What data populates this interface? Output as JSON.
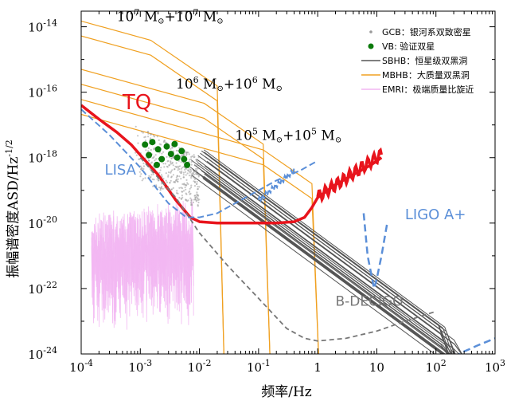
{
  "chart_data": {
    "type": "line",
    "xlabel": "频率/Hz",
    "ylabel": "振幅谱密度ASD/Hz",
    "ylabel_sup": "-1/2",
    "x_scale": "log",
    "y_scale": "log",
    "xlim": [
      0.0001,
      1000
    ],
    "ylim": [
      1e-24,
      3e-14
    ],
    "x_ticks": [
      {
        "value": 0.0001,
        "base": "10",
        "exp": "-4"
      },
      {
        "value": 0.001,
        "base": "10",
        "exp": "-3"
      },
      {
        "value": 0.01,
        "base": "10",
        "exp": "-2"
      },
      {
        "value": 0.1,
        "base": "10",
        "exp": "-1"
      },
      {
        "value": 1,
        "base": "1",
        "exp": ""
      },
      {
        "value": 10,
        "base": "10",
        "exp": ""
      },
      {
        "value": 100,
        "base": "10",
        "exp": "2"
      },
      {
        "value": 1000,
        "base": "10",
        "exp": "3"
      }
    ],
    "y_ticks": [
      {
        "value": 1e-14,
        "base": "10",
        "exp": "-14"
      },
      {
        "value": 1e-16,
        "base": "10",
        "exp": "-16"
      },
      {
        "value": 1e-18,
        "base": "10",
        "exp": "-18"
      },
      {
        "value": 1e-20,
        "base": "10",
        "exp": "-20"
      },
      {
        "value": 1e-22,
        "base": "10",
        "exp": "-22"
      },
      {
        "value": 1e-24,
        "base": "10",
        "exp": "-24"
      }
    ],
    "legend_position": "top-right",
    "legend": [
      {
        "key": "GCB",
        "label": "GCB：银河系双致密星",
        "color": "#999999",
        "marker": "dot"
      },
      {
        "key": "VB",
        "label": "VB:    验证双星",
        "color": "#0a7a0a",
        "marker": "circle"
      },
      {
        "key": "SBHB",
        "label": "SBHB：恒星级双黑洞",
        "color": "#555555",
        "marker": "line"
      },
      {
        "key": "MBHB",
        "label": "MBHB：大质量双黑洞",
        "color": "#f0a020",
        "marker": "line"
      },
      {
        "key": "EMRI",
        "label": "EMRI：极端质量比旋近",
        "color": "#f2b6f2",
        "marker": "line"
      }
    ],
    "series": [
      {
        "name": "TQ",
        "color": "#e8141c",
        "x": [
          0.0001,
          0.0002,
          0.0004,
          0.0007,
          0.001,
          0.002,
          0.004,
          0.007,
          0.01,
          0.02,
          0.05,
          0.1,
          0.2,
          0.4,
          0.6,
          0.8,
          1,
          2,
          4,
          8,
          12
        ],
        "y": [
          4e-17,
          1.5e-17,
          6e-18,
          2.5e-18,
          1.2e-18,
          3e-19,
          5e-20,
          1.5e-20,
          1.1e-20,
          1e-20,
          1e-20,
          1e-20,
          1e-20,
          1.1e-20,
          1.5e-20,
          3e-20,
          6e-20,
          1.5e-19,
          3e-19,
          6e-19,
          1e-18
        ]
      },
      {
        "name": "LISA",
        "color": "#5b8fd8",
        "x": [
          0.0001,
          0.0003,
          0.001,
          0.002,
          0.003,
          0.006,
          0.01,
          0.02,
          0.05,
          0.1,
          0.2,
          0.5,
          1
        ],
        "y": [
          3e-17,
          5e-18,
          5e-19,
          1e-19,
          4e-20,
          1.5e-20,
          1.5e-20,
          2e-20,
          5e-20,
          1e-19,
          2e-19,
          4e-19,
          8e-19
        ]
      },
      {
        "name": "B-DECIGO",
        "color": "#777777",
        "x": [
          0.001,
          0.004,
          0.01,
          0.03,
          0.1,
          0.3,
          0.6,
          1,
          3,
          10,
          30,
          100
        ],
        "y": [
          1e-18,
          6e-20,
          5e-21,
          5e-22,
          5e-23,
          6e-24,
          3e-24,
          2.5e-24,
          3e-24,
          5e-24,
          1e-23,
          2e-23
        ]
      },
      {
        "name": "LIGO A+",
        "color": "#5b8fd8",
        "x": [
          6,
          7,
          9,
          10,
          12,
          15
        ],
        "y": [
          2e-20,
          1e-21,
          1e-22,
          2e-22,
          1e-21,
          1e-20
        ]
      },
      {
        "name": "LIGO A+",
        "color": "#5b8fd8",
        "x": [
          200,
          300,
          400,
          500,
          1000
        ],
        "y": [
          8e-25,
          1.2e-24,
          1.5e-24,
          1.8e-24,
          3e-24
        ]
      }
    ],
    "annotations": [
      {
        "text": "TQ",
        "color": "#e8141c",
        "x": 0.0005,
        "y": 3e-17
      },
      {
        "text": "LISA",
        "color": "#5b8fd8",
        "x": 0.00025,
        "y": 3e-19
      },
      {
        "text": "LIGO A+",
        "color": "#5b8fd8",
        "x": 30,
        "y": 1.3e-20
      },
      {
        "text": "B-DECIGO",
        "color": "#777777",
        "x": 2,
        "y": 3e-23
      },
      {
        "mass": "7",
        "x": 0.0004,
        "y": 1.5e-14
      },
      {
        "mass": "6",
        "x": 0.004,
        "y": 1.3e-16
      },
      {
        "mass": "5",
        "x": 0.04,
        "y": 3.5e-18
      }
    ],
    "mass_label": {
      "base": "10",
      "unit": "M",
      "plus": "+"
    }
  }
}
